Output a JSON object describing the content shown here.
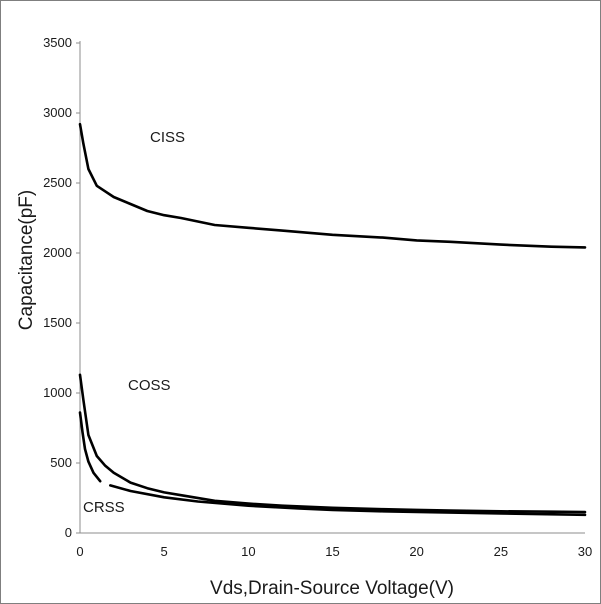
{
  "chart_data": {
    "type": "line",
    "xlabel": "Vds,Drain-Source Voltage(V)",
    "ylabel": "Capacitance(pF)",
    "xlim": [
      0,
      30
    ],
    "ylim": [
      0,
      3500
    ],
    "x_ticks": [
      "0",
      "5",
      "10",
      "15",
      "20",
      "25",
      "30"
    ],
    "y_ticks": [
      "0",
      "500",
      "1000",
      "1500",
      "2000",
      "2500",
      "3000",
      "3500"
    ],
    "grid": false,
    "line_color": "#000000",
    "series": [
      {
        "name": "CISS",
        "x": [
          0,
          0.2,
          0.5,
          1,
          1.5,
          2,
          3,
          4,
          5,
          6,
          8,
          10,
          12,
          15,
          18,
          20,
          22,
          25,
          28,
          30
        ],
        "values": [
          2920,
          2780,
          2600,
          2480,
          2440,
          2400,
          2350,
          2300,
          2270,
          2250,
          2200,
          2180,
          2160,
          2130,
          2110,
          2090,
          2080,
          2060,
          2045,
          2040
        ]
      },
      {
        "name": "COSS",
        "x": [
          0,
          0.2,
          0.5,
          1,
          1.5,
          2,
          3,
          4,
          5,
          6,
          8,
          10,
          12,
          15,
          18,
          20,
          22,
          25,
          28,
          30
        ],
        "values": [
          1130,
          950,
          700,
          550,
          480,
          430,
          360,
          320,
          290,
          270,
          230,
          210,
          195,
          180,
          170,
          165,
          160,
          155,
          152,
          150
        ]
      },
      {
        "name": "CRSS",
        "x": [
          0,
          0.15,
          0.3,
          0.5,
          0.8,
          1.2
        ],
        "values": [
          860,
          720,
          600,
          510,
          430,
          370
        ]
      },
      {
        "name": "",
        "x": [
          1.8,
          3,
          5,
          7,
          10,
          13,
          15,
          18,
          20,
          25,
          30
        ],
        "values": [
          340,
          300,
          255,
          225,
          195,
          175,
          165,
          155,
          150,
          140,
          130
        ]
      }
    ]
  }
}
